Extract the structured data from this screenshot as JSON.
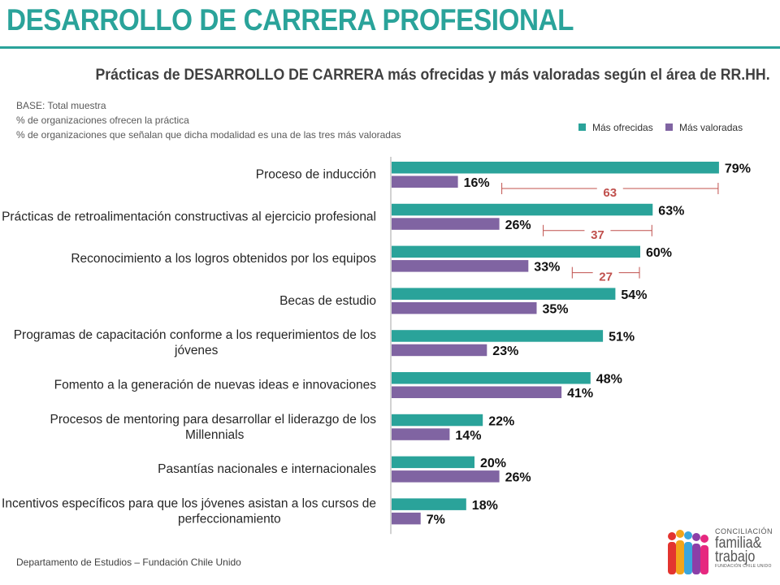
{
  "header": {
    "title": "DESARROLLO DE CARRERA PROFESIONAL",
    "subtitle": "Prácticas de DESARROLLO DE CARRERA más ofrecidas y más valoradas según el área de RR.HH."
  },
  "base_notes": [
    "BASE:  Total muestra",
    "%  de organizaciones ofrecen la práctica",
    "% de organizaciones que señalan que dicha modalidad es una de las tres más valoradas"
  ],
  "colors": {
    "accent": "#2aa39a",
    "ofrecidas": "#2aa39a",
    "valoradas": "#8064a2",
    "gap": "#c0504d"
  },
  "chart_data": {
    "type": "bar",
    "orientation": "horizontal",
    "categories": [
      [
        "Proceso de inducción"
      ],
      [
        "Prácticas de retroalimentación constructivas al ejercicio profesional"
      ],
      [
        "Reconocimiento a los logros obtenidos por los equipos"
      ],
      [
        "Becas de estudio"
      ],
      [
        "Programas de capacitación conforme a los requerimientos de los",
        "jóvenes"
      ],
      [
        "Fomento a la generación de nuevas ideas e innovaciones"
      ],
      [
        "Procesos de mentoring para desarrollar el liderazgo de los",
        "Millennials"
      ],
      [
        "Pasantías nacionales e internacionales"
      ],
      [
        "Incentivos específicos para que los jóvenes asistan a los cursos de",
        "perfeccionamiento"
      ]
    ],
    "series": [
      {
        "name": "Más ofrecidas",
        "values": [
          79,
          63,
          60,
          54,
          51,
          48,
          22,
          20,
          18
        ],
        "labels": [
          "79%",
          "63%",
          "60%",
          "54%",
          "51%",
          "48%",
          "22%",
          "20%",
          "18%"
        ]
      },
      {
        "name": "Más valoradas",
        "values": [
          16,
          26,
          33,
          35,
          23,
          41,
          14,
          26,
          7
        ],
        "labels": [
          "16%",
          "26%",
          "33%",
          "35%",
          "23%",
          "41%",
          "14%",
          "26%",
          "7%"
        ]
      }
    ],
    "gap_annotations": [
      {
        "category_index": 0,
        "value": 63,
        "label": "63"
      },
      {
        "category_index": 1,
        "value": 37,
        "label": "37"
      },
      {
        "category_index": 2,
        "value": 27,
        "label": "27"
      }
    ],
    "xlim": [
      0,
      100
    ],
    "legend_position": "top-right"
  },
  "footer": {
    "text": "Departamento de Estudios – Fundación Chile Unido"
  },
  "logo": {
    "line1": "CONCILIACIÓN",
    "line2": "familia&",
    "line3": "trabajo",
    "line4": "FUNDACIÓN CHILE UNIDO"
  }
}
